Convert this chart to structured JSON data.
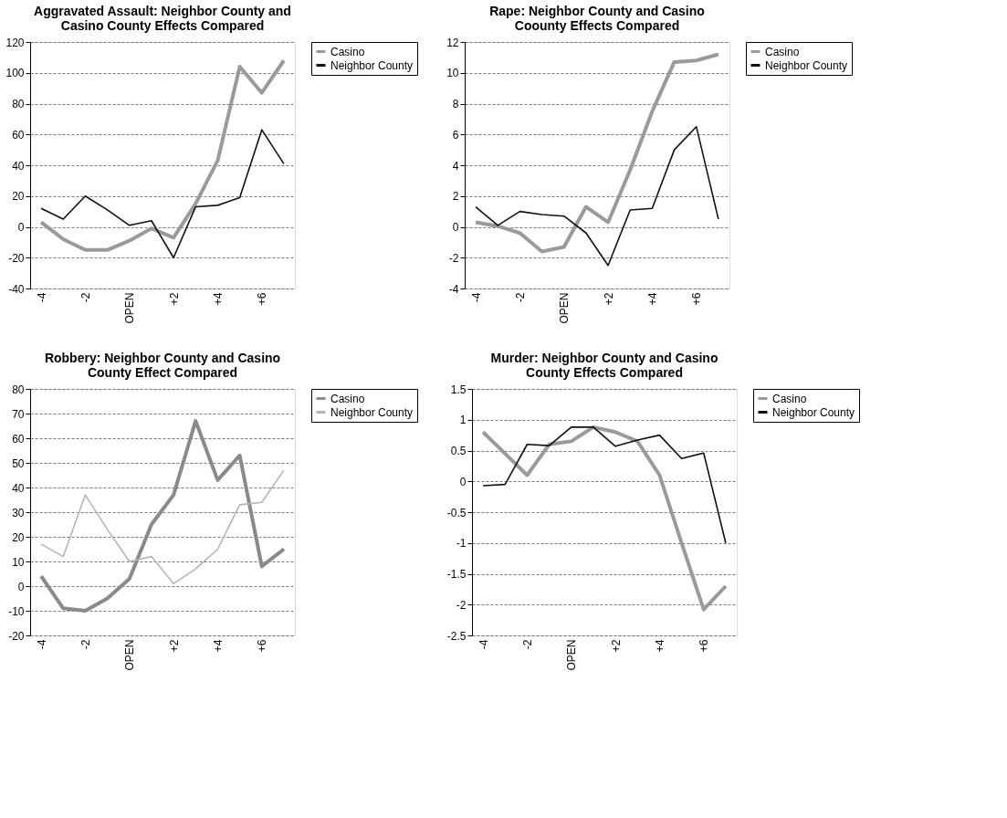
{
  "chart_data": [
    {
      "type": "line",
      "title": "Aggravated Assault:  Neighbor County and Casino County Effects Compared",
      "categories": [
        "-4",
        null,
        "-2",
        null,
        "OPEN",
        null,
        "+2",
        null,
        "+4",
        null,
        "+6",
        null
      ],
      "ylim": [
        -40,
        120
      ],
      "yticks": [
        -40,
        -20,
        0,
        20,
        40,
        60,
        80,
        100,
        120
      ],
      "grid": "y",
      "legend": "right",
      "series": [
        {
          "name": "Casino",
          "color": "#9a9a9a",
          "values": [
            3,
            -8,
            -15,
            -15,
            -9,
            -1,
            -7,
            15,
            43,
            104,
            87,
            108
          ]
        },
        {
          "name": "Neighbor County",
          "color": "#111111",
          "values": [
            12,
            5,
            20,
            11,
            1,
            4,
            -20,
            13,
            14,
            19,
            63,
            41
          ]
        }
      ]
    },
    {
      "type": "line",
      "title": "Rape:  Neighbor County and Casino Coounty Effects Compared",
      "categories": [
        "-4",
        null,
        "-2",
        null,
        "OPEN",
        null,
        "+2",
        null,
        "+4",
        null,
        "+6",
        null
      ],
      "ylim": [
        -4,
        12
      ],
      "yticks": [
        -4,
        -2,
        0,
        2,
        4,
        6,
        8,
        10,
        12
      ],
      "grid": "y",
      "legend": "right",
      "series": [
        {
          "name": "Casino",
          "color": "#9a9a9a",
          "values": [
            0.3,
            0.05,
            -0.4,
            -1.6,
            -1.3,
            1.3,
            0.3,
            3.7,
            7.5,
            10.7,
            10.8,
            11.2
          ]
        },
        {
          "name": "Neighbor County",
          "color": "#111111",
          "values": [
            1.3,
            0.1,
            1.0,
            0.8,
            0.7,
            -0.4,
            -2.5,
            1.1,
            1.2,
            5.0,
            6.5,
            0.5
          ]
        }
      ]
    },
    {
      "type": "line",
      "title": "Robbery:  Neighbor County and Casino County Effect Compared",
      "categories": [
        "-4",
        null,
        "-2",
        null,
        "OPEN",
        null,
        "+2",
        null,
        "+4",
        null,
        "+6",
        null
      ],
      "ylim": [
        -20,
        80
      ],
      "yticks": [
        -20,
        -10,
        0,
        10,
        20,
        30,
        40,
        50,
        60,
        70,
        80
      ],
      "grid": "y",
      "legend": "right",
      "series": [
        {
          "name": "Casino",
          "color": "#8a8a8a",
          "values": [
            4,
            -9,
            -10,
            -5,
            3,
            25,
            37,
            67,
            43,
            53,
            8,
            15
          ]
        },
        {
          "name": "Neighbor County",
          "color": "#b5b5b5",
          "values": [
            17,
            12,
            37,
            23,
            10,
            12,
            1,
            7,
            15,
            33,
            34,
            47
          ]
        }
      ]
    },
    {
      "type": "line",
      "title": "Murder:  Neighbor County and Casino County Effects Compared",
      "categories": [
        "-4",
        null,
        "-2",
        null,
        "OPEN",
        null,
        "+2",
        null,
        "+4",
        null,
        "+6",
        null
      ],
      "ylim": [
        -2.5,
        1.5
      ],
      "yticks": [
        -2.5,
        -2,
        -1.5,
        -1,
        -0.5,
        0,
        0.5,
        1,
        1.5
      ],
      "grid": "y",
      "legend": "right",
      "series": [
        {
          "name": "Casino",
          "color": "#9a9a9a",
          "values": [
            0.8,
            0.45,
            0.1,
            0.6,
            0.65,
            0.88,
            0.8,
            0.65,
            0.1,
            -1.0,
            -2.08,
            -1.7
          ]
        },
        {
          "name": "Neighbor County",
          "color": "#111111",
          "values": [
            -0.07,
            -0.05,
            0.6,
            0.58,
            0.88,
            0.88,
            0.57,
            0.67,
            0.75,
            0.37,
            0.46,
            -1.0
          ]
        }
      ]
    }
  ]
}
